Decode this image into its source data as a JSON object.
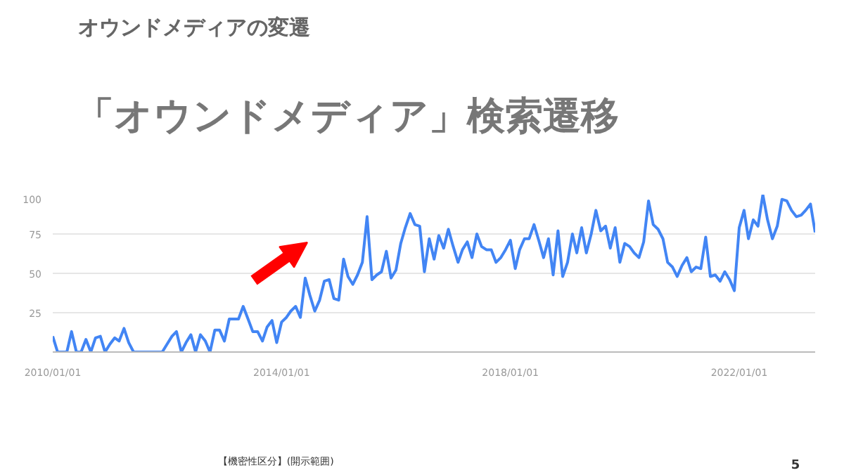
{
  "chart_data": {
    "type": "line",
    "title": "オウンドメディアの変遷",
    "subtitle": "「オウンドメディア」検索遷移",
    "annotations": [
      "【機密性区分】(開示範囲)",
      "5"
    ],
    "color": "#4285f4",
    "grid": "y",
    "x": [
      "2010-01",
      "2010-02",
      "2010-03",
      "2010-04",
      "2010-05",
      "2010-06",
      "2010-07",
      "2010-08",
      "2010-09",
      "2010-10",
      "2010-11",
      "2010-12",
      "2011-01",
      "2011-02",
      "2011-03",
      "2011-04",
      "2011-05",
      "2011-06",
      "2011-07",
      "2011-08",
      "2011-09",
      "2011-10",
      "2011-11",
      "2011-12",
      "2012-01",
      "2012-02",
      "2012-03",
      "2012-04",
      "2012-05",
      "2012-06",
      "2012-07",
      "2012-08",
      "2012-09",
      "2012-10",
      "2012-11",
      "2012-12",
      "2013-01",
      "2013-02",
      "2013-03",
      "2013-04",
      "2013-05",
      "2013-06",
      "2013-07",
      "2013-08",
      "2013-09",
      "2013-10",
      "2013-11",
      "2013-12",
      "2014-01",
      "2014-02",
      "2014-03",
      "2014-04",
      "2014-05",
      "2014-06",
      "2014-07",
      "2014-08",
      "2014-09",
      "2014-10",
      "2014-11",
      "2014-12",
      "2015-01",
      "2015-02",
      "2015-03",
      "2015-04",
      "2015-05",
      "2015-06",
      "2015-07",
      "2015-08",
      "2015-09",
      "2015-10",
      "2015-11",
      "2015-12",
      "2016-01",
      "2016-02",
      "2016-03",
      "2016-04",
      "2016-05",
      "2016-06",
      "2016-07",
      "2016-08",
      "2016-09",
      "2016-10",
      "2016-11",
      "2016-12",
      "2017-01",
      "2017-02",
      "2017-03",
      "2017-04",
      "2017-05",
      "2017-06",
      "2017-07",
      "2017-08",
      "2017-09",
      "2017-10",
      "2017-11",
      "2017-12",
      "2018-01",
      "2018-02",
      "2018-03",
      "2018-04",
      "2018-05",
      "2018-06",
      "2018-07",
      "2018-08",
      "2018-09",
      "2018-10",
      "2018-11",
      "2018-12",
      "2019-01",
      "2019-02",
      "2019-03",
      "2019-04",
      "2019-05",
      "2019-06",
      "2019-07",
      "2019-08",
      "2019-09",
      "2019-10",
      "2019-11",
      "2019-12",
      "2020-01",
      "2020-02",
      "2020-03",
      "2020-04",
      "2020-05",
      "2020-06",
      "2020-07",
      "2020-08",
      "2020-09",
      "2020-10",
      "2020-11",
      "2020-12",
      "2021-01",
      "2021-02",
      "2021-03",
      "2021-04",
      "2021-05",
      "2021-06",
      "2021-07",
      "2021-08",
      "2021-09",
      "2021-10",
      "2021-11",
      "2021-12",
      "2022-01",
      "2022-02",
      "2022-03",
      "2022-04",
      "2022-05",
      "2022-06",
      "2022-07",
      "2022-08",
      "2022-09",
      "2022-10",
      "2022-11",
      "2022-12",
      "2023-01",
      "2023-02",
      "2023-03",
      "2023-04",
      "2023-05"
    ],
    "values": [
      10,
      0,
      0,
      0,
      13,
      0,
      0,
      8,
      0,
      9,
      10,
      0,
      5,
      9,
      7,
      15,
      6,
      0,
      0,
      0,
      0,
      0,
      0,
      0,
      5,
      10,
      13,
      0,
      6,
      11,
      0,
      11,
      7,
      0,
      14,
      14,
      7,
      21,
      21,
      21,
      29,
      21,
      13,
      13,
      7,
      16,
      20,
      6,
      19,
      22,
      26,
      29,
      22,
      47,
      36,
      26,
      33,
      45,
      46,
      34,
      33,
      59,
      48,
      43,
      49,
      57,
      86,
      46,
      49,
      51,
      64,
      47,
      52,
      69,
      79,
      88,
      81,
      80,
      51,
      72,
      59,
      74,
      66,
      78,
      67,
      57,
      65,
      70,
      60,
      75,
      67,
      65,
      65,
      57,
      60,
      65,
      71,
      53,
      65,
      72,
      72,
      81,
      71,
      60,
      72,
      49,
      77,
      48,
      57,
      75,
      63,
      79,
      63,
      75,
      90,
      77,
      80,
      66,
      79,
      57,
      69,
      67,
      63,
      60,
      70,
      96,
      81,
      78,
      72,
      57,
      54,
      48,
      55,
      60,
      51,
      54,
      53,
      73,
      48,
      49,
      45,
      51,
      46,
      39,
      79,
      90,
      72,
      84,
      80,
      100,
      84,
      72,
      80,
      97,
      96,
      90,
      86,
      87,
      90,
      94,
      76
    ],
    "xlim": [
      "2010-01",
      "2023-05"
    ],
    "xticks": [
      {
        "value": "2010-01-01",
        "label": "2010/01/01"
      },
      {
        "value": "2014-01-01",
        "label": "2014/01/01"
      },
      {
        "value": "2018-01-01",
        "label": "2018/01/01"
      },
      {
        "value": "2022-01-01",
        "label": "2022/01/01"
      }
    ],
    "ylim": [
      0,
      100
    ],
    "yticks": [
      25,
      50,
      75,
      100
    ]
  }
}
